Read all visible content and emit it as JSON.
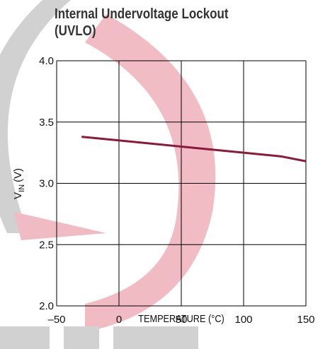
{
  "chart_data": {
    "type": "line",
    "title": "Internal Undervoltage Lockout (UVLO)",
    "xlabel": "TEMPERATURE (°C)",
    "ylabel": {
      "symbol": "V",
      "subscript": "IN",
      "unit": "(V)"
    },
    "x": [
      -30,
      0,
      50,
      100,
      130,
      150
    ],
    "values": [
      3.38,
      3.35,
      3.3,
      3.25,
      3.22,
      3.18
    ],
    "color": "#8b1a3a",
    "xlim": [
      -50,
      150
    ],
    "xticks": [
      {
        "value": -50,
        "label": "–50"
      },
      0,
      50,
      100,
      150
    ],
    "ylim": [
      2,
      4
    ],
    "yticks": [
      {
        "value": 2,
        "label": "2.0"
      },
      {
        "value": 2.5,
        "label": "2.5"
      },
      {
        "value": 3,
        "label": "3.0"
      },
      {
        "value": 3.5,
        "label": "3.5"
      },
      {
        "value": 4,
        "label": "4.0"
      }
    ],
    "grid": true
  }
}
